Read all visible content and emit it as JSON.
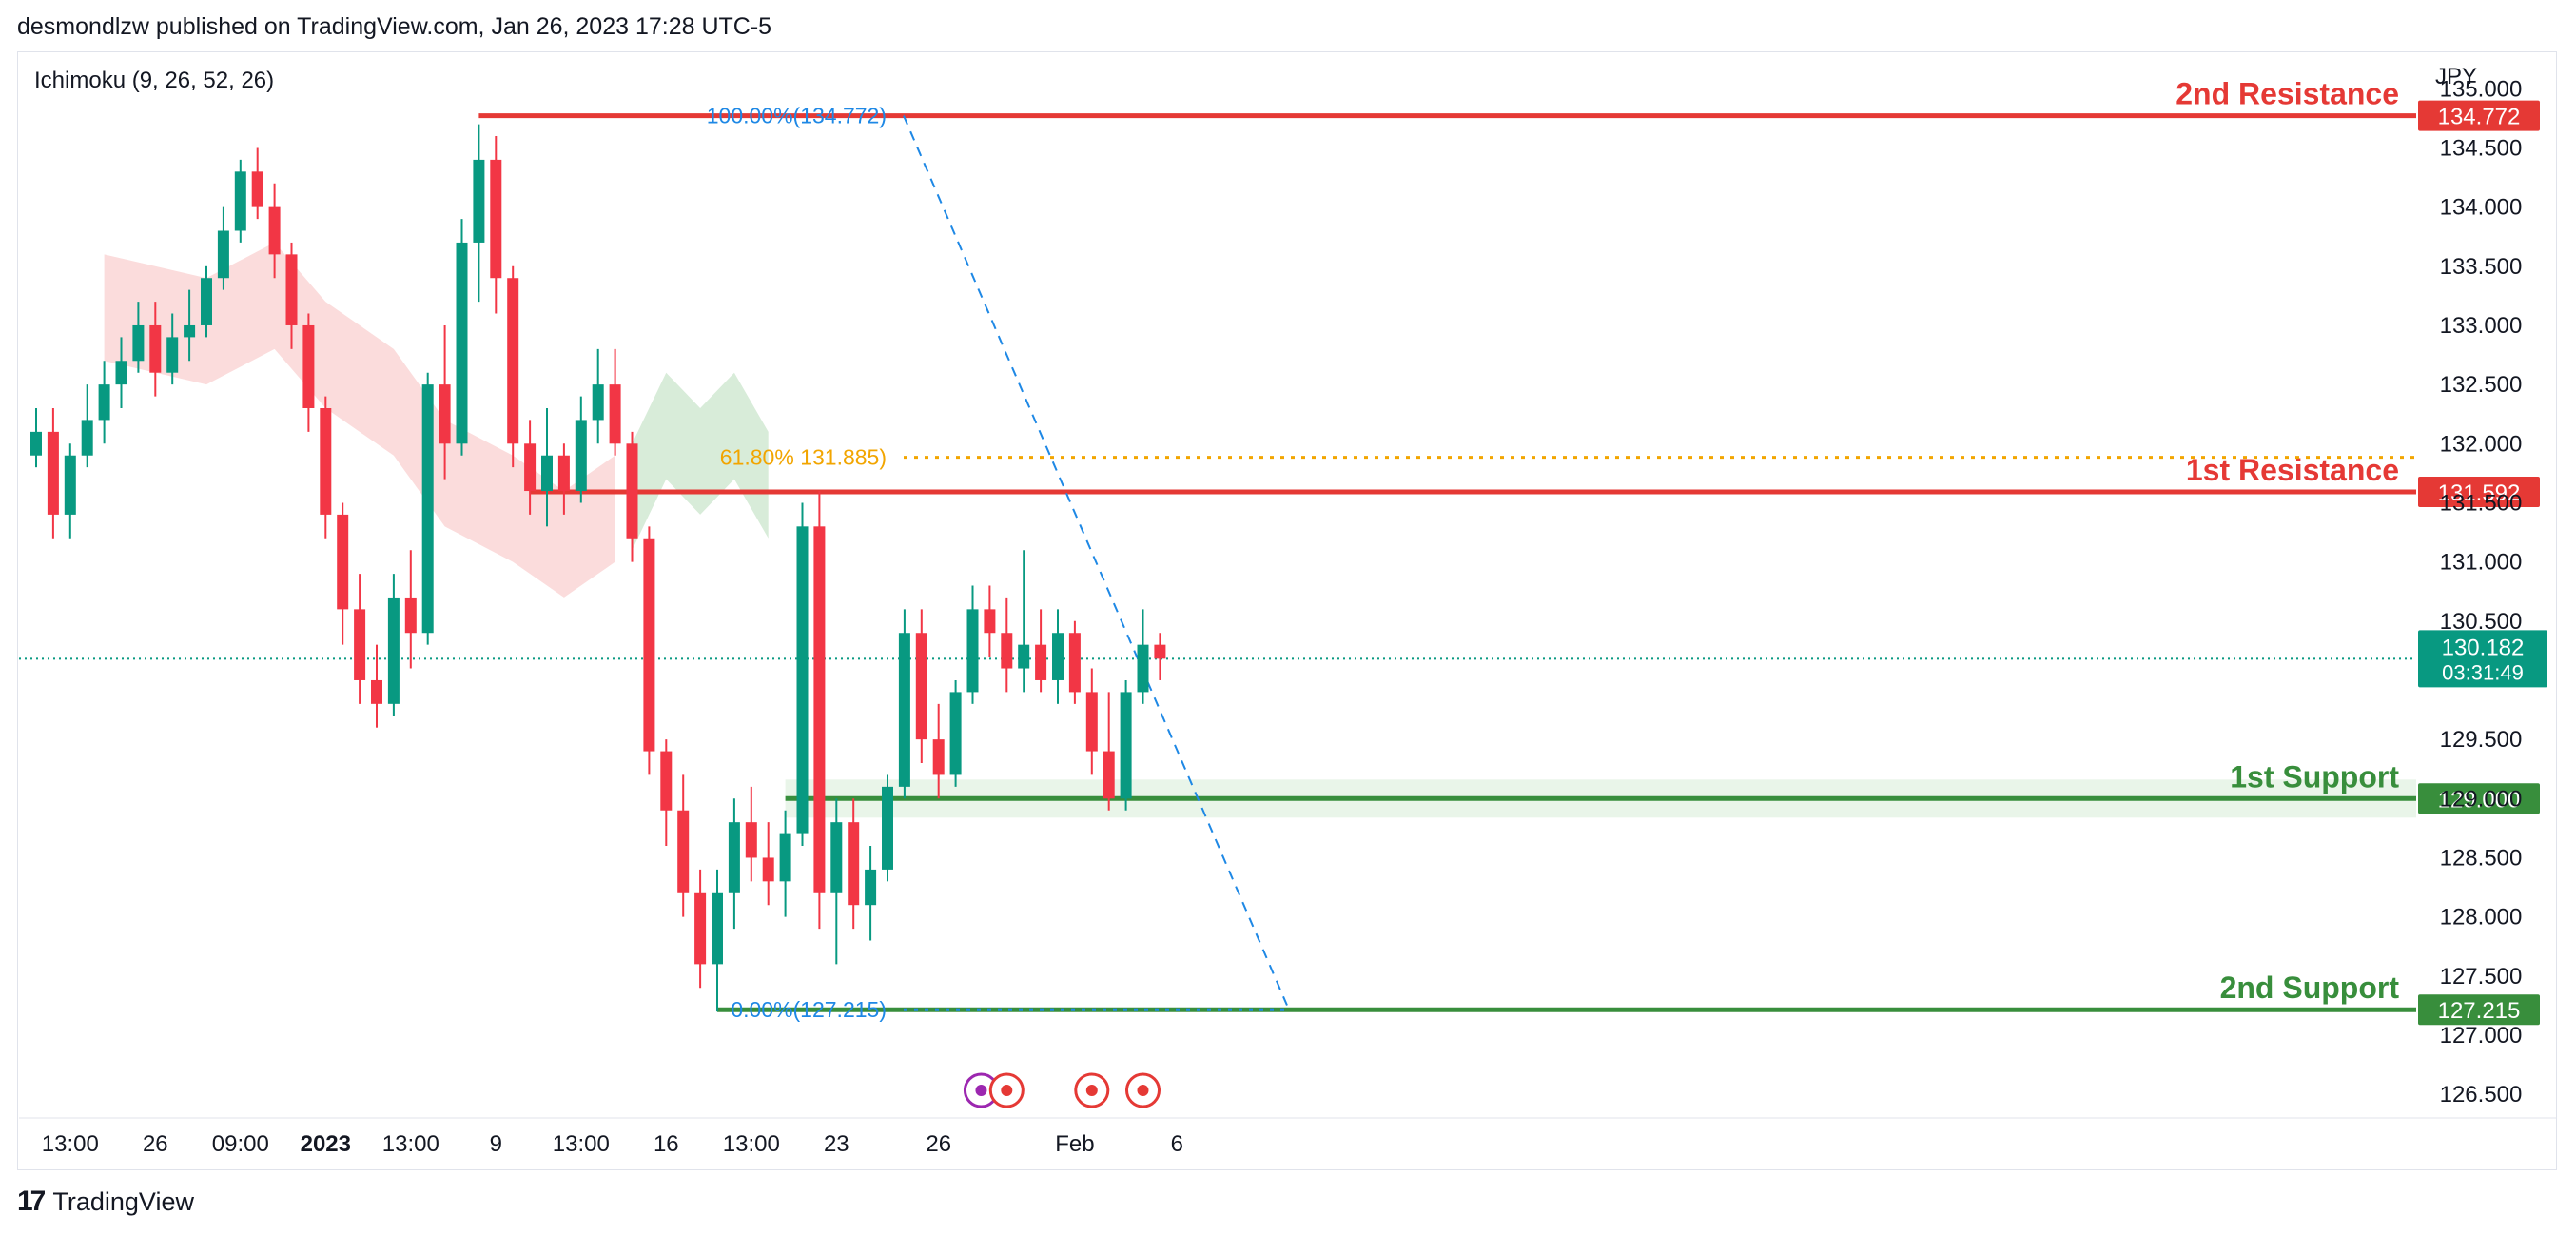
{
  "header": {
    "published": "desmondlzw published on TradingView.com, Jan 26, 2023 17:28 UTC-5"
  },
  "footer": {
    "brand": "TradingView",
    "logo_mark": "17"
  },
  "chart_data": {
    "type": "candlestick",
    "indicator_label": "Ichimoku (9, 26, 52, 26)",
    "currency": "JPY",
    "y_ticks": [
      "135.000",
      "134.500",
      "134.000",
      "133.500",
      "133.000",
      "132.500",
      "132.000",
      "131.500",
      "131.000",
      "130.500",
      "129.500",
      "129.000",
      "128.500",
      "128.000",
      "127.500",
      "127.000",
      "126.500"
    ],
    "x_ticks": [
      {
        "label": "13:00",
        "i": 2,
        "bold": false
      },
      {
        "label": "26",
        "i": 7,
        "bold": false
      },
      {
        "label": "09:00",
        "i": 12,
        "bold": false
      },
      {
        "label": "2023",
        "i": 17,
        "bold": true
      },
      {
        "label": "13:00",
        "i": 22,
        "bold": false
      },
      {
        "label": "9",
        "i": 27,
        "bold": false
      },
      {
        "label": "13:00",
        "i": 32,
        "bold": false
      },
      {
        "label": "16",
        "i": 37,
        "bold": false
      },
      {
        "label": "13:00",
        "i": 42,
        "bold": false
      },
      {
        "label": "23",
        "i": 47,
        "bold": false
      },
      {
        "label": "26",
        "i": 53,
        "bold": false
      },
      {
        "label": "Feb",
        "i": 61,
        "bold": false
      },
      {
        "label": "6",
        "i": 67,
        "bold": false
      }
    ],
    "levels": [
      {
        "name": "2nd Resistance",
        "price": 134.772,
        "tag": "134.772",
        "color": "#e53935"
      },
      {
        "name": "1st Resistance",
        "price": 131.592,
        "tag": "131.592",
        "color": "#e53935"
      },
      {
        "name": "1st Support",
        "price": 129.0,
        "tag": "129.000",
        "color": "#388e3c"
      },
      {
        "name": "2nd Support",
        "price": 127.215,
        "tag": "127.215",
        "color": "#388e3c"
      }
    ],
    "fib": [
      {
        "label": "100.00%(134.772)",
        "price": 134.772,
        "color": "#1e88e5"
      },
      {
        "label": "61.80% 131.885)",
        "price": 131.885,
        "color": "#f2a500"
      },
      {
        "label": "0.00%(127.215)",
        "price": 127.215,
        "color": "#1e88e5"
      }
    ],
    "last_price": {
      "value": "130.182",
      "countdown": "03:31:49",
      "price": 130.182,
      "color": "#089981"
    },
    "colors": {
      "up": "#089981",
      "down": "#f23645",
      "bull_cloud": "#d8ecd9",
      "bear_cloud": "#fbdcdc"
    },
    "candles": [
      [
        131.9,
        132.3,
        131.8,
        132.1
      ],
      [
        132.1,
        132.3,
        131.2,
        131.4
      ],
      [
        131.4,
        132.0,
        131.2,
        131.9
      ],
      [
        131.9,
        132.5,
        131.8,
        132.2
      ],
      [
        132.2,
        132.7,
        132.0,
        132.5
      ],
      [
        132.5,
        132.9,
        132.3,
        132.7
      ],
      [
        132.7,
        133.2,
        132.6,
        133.0
      ],
      [
        133.0,
        133.2,
        132.4,
        132.6
      ],
      [
        132.6,
        133.1,
        132.5,
        132.9
      ],
      [
        132.9,
        133.3,
        132.7,
        133.0
      ],
      [
        133.0,
        133.5,
        132.9,
        133.4
      ],
      [
        133.4,
        134.0,
        133.3,
        133.8
      ],
      [
        133.8,
        134.4,
        133.7,
        134.3
      ],
      [
        134.3,
        134.5,
        133.9,
        134.0
      ],
      [
        134.0,
        134.2,
        133.4,
        133.6
      ],
      [
        133.6,
        133.7,
        132.8,
        133.0
      ],
      [
        133.0,
        133.1,
        132.1,
        132.3
      ],
      [
        132.3,
        132.4,
        131.2,
        131.4
      ],
      [
        131.4,
        131.5,
        130.3,
        130.6
      ],
      [
        130.6,
        130.9,
        129.8,
        130.0
      ],
      [
        130.0,
        130.3,
        129.6,
        129.8
      ],
      [
        129.8,
        130.9,
        129.7,
        130.7
      ],
      [
        130.7,
        131.1,
        130.1,
        130.4
      ],
      [
        130.4,
        132.6,
        130.3,
        132.5
      ],
      [
        132.5,
        133.0,
        131.7,
        132.0
      ],
      [
        132.0,
        133.9,
        131.9,
        133.7
      ],
      [
        133.7,
        134.7,
        133.2,
        134.4
      ],
      [
        134.4,
        134.6,
        133.1,
        133.4
      ],
      [
        133.4,
        133.5,
        131.8,
        132.0
      ],
      [
        132.0,
        132.2,
        131.4,
        131.6
      ],
      [
        131.6,
        132.3,
        131.3,
        131.9
      ],
      [
        131.9,
        132.0,
        131.4,
        131.6
      ],
      [
        131.6,
        132.4,
        131.5,
        132.2
      ],
      [
        132.2,
        132.8,
        132.0,
        132.5
      ],
      [
        132.5,
        132.8,
        131.9,
        132.0
      ],
      [
        132.0,
        132.1,
        131.0,
        131.2
      ],
      [
        131.2,
        131.3,
        129.2,
        129.4
      ],
      [
        129.4,
        129.5,
        128.6,
        128.9
      ],
      [
        128.9,
        129.2,
        128.0,
        128.2
      ],
      [
        128.2,
        128.4,
        127.4,
        127.6
      ],
      [
        127.6,
        128.4,
        127.2,
        128.2
      ],
      [
        128.2,
        129.0,
        127.9,
        128.8
      ],
      [
        128.8,
        129.1,
        128.3,
        128.5
      ],
      [
        128.5,
        128.8,
        128.1,
        128.3
      ],
      [
        128.3,
        128.9,
        128.0,
        128.7
      ],
      [
        128.7,
        131.5,
        128.6,
        131.3
      ],
      [
        131.3,
        131.6,
        127.9,
        128.2
      ],
      [
        128.2,
        129.0,
        127.6,
        128.8
      ],
      [
        128.8,
        129.0,
        127.9,
        128.1
      ],
      [
        128.1,
        128.6,
        127.8,
        128.4
      ],
      [
        128.4,
        129.2,
        128.3,
        129.1
      ],
      [
        129.1,
        130.6,
        129.0,
        130.4
      ],
      [
        130.4,
        130.6,
        129.3,
        129.5
      ],
      [
        129.5,
        129.8,
        129.0,
        129.2
      ],
      [
        129.2,
        130.0,
        129.1,
        129.9
      ],
      [
        129.9,
        130.8,
        129.8,
        130.6
      ],
      [
        130.6,
        130.8,
        130.2,
        130.4
      ],
      [
        130.4,
        130.7,
        129.9,
        130.1
      ],
      [
        130.1,
        131.1,
        129.9,
        130.3
      ],
      [
        130.3,
        130.6,
        129.9,
        130.0
      ],
      [
        130.0,
        130.6,
        129.8,
        130.4
      ],
      [
        130.4,
        130.5,
        129.8,
        129.9
      ],
      [
        129.9,
        130.1,
        129.2,
        129.4
      ],
      [
        129.4,
        129.9,
        128.9,
        129.0
      ],
      [
        129.0,
        130.0,
        128.9,
        129.9
      ],
      [
        129.9,
        130.6,
        129.8,
        130.3
      ],
      [
        130.3,
        130.4,
        130.0,
        130.182
      ]
    ],
    "cloud_bear": [
      [
        4,
        133.6
      ],
      [
        10,
        133.4
      ],
      [
        14,
        133.7
      ],
      [
        17,
        133.2
      ],
      [
        21,
        132.8
      ],
      [
        24,
        132.2
      ],
      [
        28,
        131.9
      ],
      [
        31,
        131.6
      ],
      [
        34,
        131.9
      ]
    ],
    "cloud_bull": [
      [
        35,
        132.0
      ],
      [
        37,
        132.6
      ],
      [
        39,
        132.3
      ],
      [
        41,
        132.6
      ],
      [
        43,
        132.1
      ]
    ]
  }
}
